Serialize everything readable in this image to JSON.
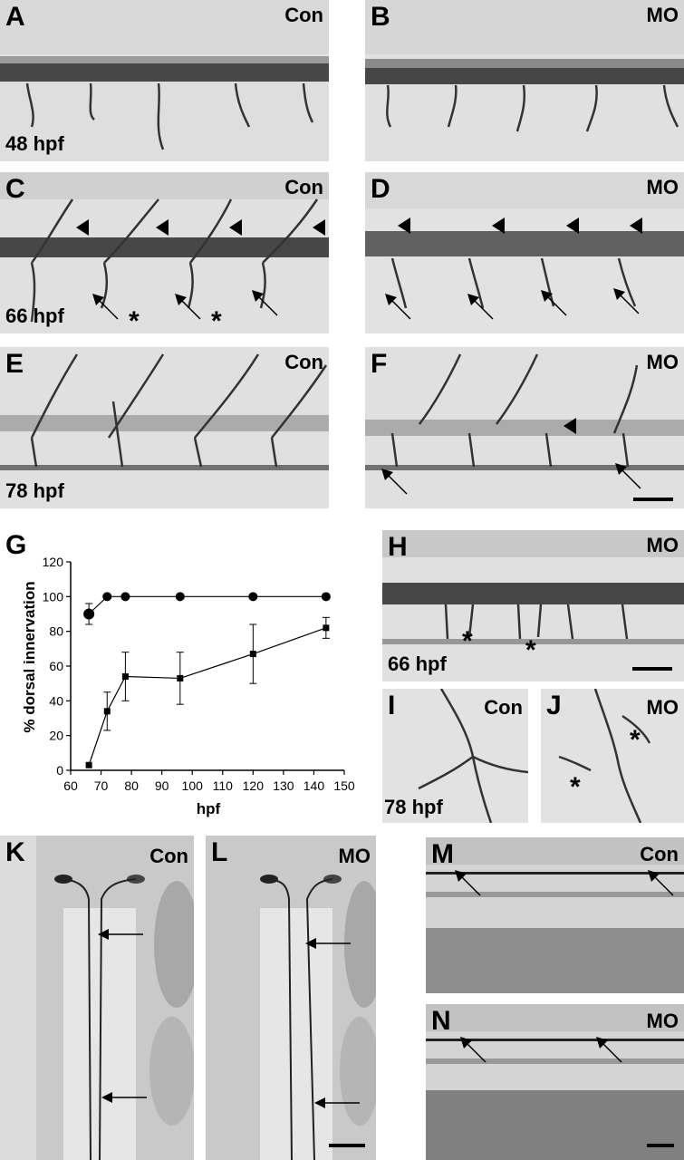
{
  "panels": {
    "A": {
      "label": "A",
      "condition": "Con",
      "time": "48 hpf"
    },
    "B": {
      "label": "B",
      "condition": "MO"
    },
    "C": {
      "label": "C",
      "condition": "Con",
      "time": "66 hpf"
    },
    "D": {
      "label": "D",
      "condition": "MO"
    },
    "E": {
      "label": "E",
      "condition": "Con",
      "time": "78 hpf"
    },
    "F": {
      "label": "F",
      "condition": "MO"
    },
    "G": {
      "label": "G"
    },
    "H": {
      "label": "H",
      "condition": "MO",
      "time": "66 hpf"
    },
    "I": {
      "label": "I",
      "condition": "Con",
      "time": "78 hpf"
    },
    "J": {
      "label": "J",
      "condition": "MO"
    },
    "K": {
      "label": "K",
      "condition": "Con"
    },
    "L": {
      "label": "L",
      "condition": "MO"
    },
    "M": {
      "label": "M",
      "condition": "Con"
    },
    "N": {
      "label": "N",
      "condition": "MO"
    }
  },
  "star_symbol": "*",
  "chart_data": {
    "type": "line",
    "ylabel": "% dorsal innervation",
    "xlabel": "hpf",
    "xlim": [
      60,
      150
    ],
    "ylim": [
      0,
      120
    ],
    "xticks": [
      60,
      70,
      80,
      90,
      100,
      110,
      120,
      130,
      140,
      150
    ],
    "yticks": [
      0,
      20,
      40,
      60,
      80,
      100,
      120
    ],
    "series": [
      {
        "marker": "circle",
        "x": [
          66,
          72,
          78,
          96,
          120,
          144
        ],
        "y": [
          90,
          100,
          100,
          100,
          100,
          100
        ],
        "err": [
          6,
          0,
          0,
          0,
          0,
          0
        ]
      },
      {
        "marker": "square",
        "x": [
          66,
          72,
          78,
          96,
          120,
          144
        ],
        "y": [
          3,
          34,
          54,
          53,
          67,
          82
        ],
        "err": [
          0,
          11,
          14,
          15,
          17,
          6
        ]
      }
    ]
  }
}
